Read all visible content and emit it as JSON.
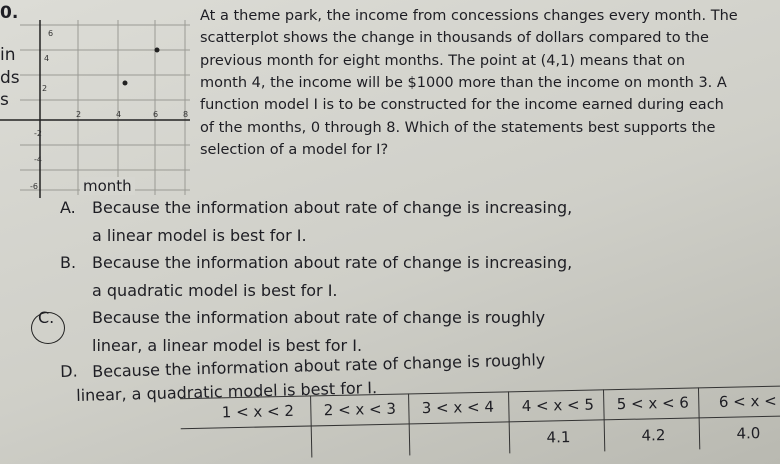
{
  "margin_fragments": [
    "0.",
    "in",
    "ds",
    "s"
  ],
  "graph": {
    "y_tick_labels": [
      "6",
      "4",
      "2",
      "-2",
      "-4",
      "-6"
    ],
    "x_tick_labels": [
      "2",
      "4",
      "6",
      "8"
    ],
    "x_label": "month"
  },
  "question": {
    "lines": [
      "At a theme park, the income from concessions changes every month. The",
      "scatterplot shows the change in thousands of dollars compared to the",
      "previous month for eight months. The point at (4,1) means that on",
      "month 4, the income will be $1000 more than the income on month 3. A",
      "function model I is to be constructed for the income earned during each",
      "of the months, 0 through 8. Which of the statements best supports the",
      "selection of a model for I?"
    ]
  },
  "options": [
    {
      "letter": "A.",
      "lines": [
        "Because the information about rate of change is increasing,",
        "a linear model is best for I."
      ]
    },
    {
      "letter": "B.",
      "lines": [
        "Because the information about rate of change is increasing,",
        "a quadratic model is best for I."
      ]
    },
    {
      "letter": "C.",
      "lines": [
        "Because the information about rate of change is roughly",
        "linear, a linear model is best for I."
      ]
    },
    {
      "letter": "D.",
      "lines": [
        "Because the information about rate of change is roughly",
        "linear, a quadratic model is best for I."
      ]
    }
  ],
  "table": {
    "headers": [
      "1 < x < 2",
      "2 < x < 3",
      "3 < x < 4",
      "4 < x < 5",
      "5 < x < 6",
      "6 < x <"
    ],
    "values": [
      null,
      null,
      null,
      "4.1",
      "4.2",
      "4.0"
    ]
  }
}
